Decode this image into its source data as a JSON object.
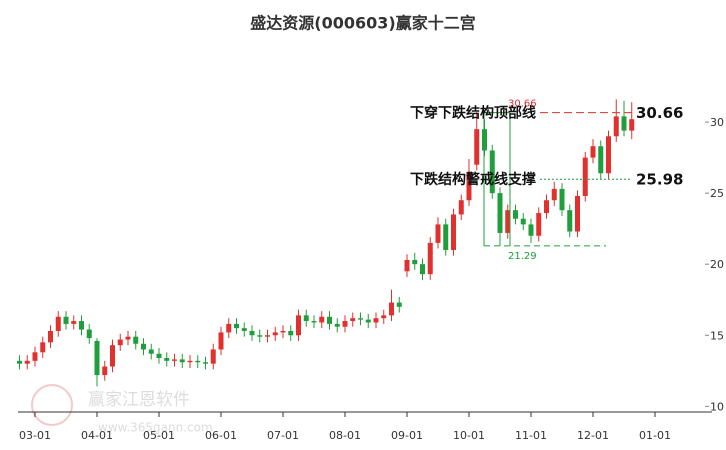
{
  "chart_data": {
    "type": "candlestick",
    "title": "盛达资源(000603)赢家十二宫",
    "categories": [
      null,
      null,
      "03-01",
      null,
      null,
      null,
      null,
      null,
      null,
      null,
      "04-01",
      null,
      null,
      null,
      null,
      null,
      null,
      null,
      "05-01",
      null,
      null,
      null,
      null,
      null,
      null,
      null,
      "06-01",
      null,
      null,
      null,
      null,
      null,
      null,
      null,
      "07-01",
      null,
      null,
      null,
      null,
      null,
      null,
      null,
      "08-01",
      null,
      null,
      null,
      null,
      null,
      null,
      null,
      "09-01",
      null,
      null,
      null,
      null,
      null,
      null,
      null,
      "10-01",
      null,
      null,
      null,
      null,
      null,
      null,
      null,
      "11-01",
      null,
      null,
      null,
      null,
      null,
      null,
      null,
      "12-01",
      null,
      null,
      null,
      null,
      null,
      null,
      null,
      "01-01",
      null,
      null,
      null,
      null,
      null,
      null,
      null
    ],
    "open": [
      13.2,
      13.0,
      13.2,
      13.8,
      14.5,
      15.3,
      16.3,
      15.8,
      16.0,
      15.4,
      14.6,
      12.2,
      12.8,
      14.3,
      14.7,
      14.9,
      14.4,
      14.0,
      13.7,
      13.4,
      13.2,
      13.3,
      13.1,
      13.2,
      13.1,
      13.0,
      14.0,
      15.2,
      15.8,
      15.5,
      15.3,
      15.0,
      14.9,
      15.0,
      15.2,
      15.3,
      15.0,
      16.4,
      16.0,
      15.9,
      16.3,
      15.8,
      15.6,
      16.0,
      16.2,
      16.1,
      15.9,
      16.2,
      16.4,
      17.3,
      19.5,
      20.3,
      20.0,
      19.3,
      21.5,
      22.8,
      21.0,
      23.5,
      24.5,
      27.0,
      29.5,
      28.0,
      25.0,
      22.2,
      23.8,
      23.2,
      22.8,
      22.0,
      23.6,
      24.5,
      25.3,
      23.8,
      22.3,
      24.8,
      27.5,
      28.3,
      26.4,
      29.0,
      30.4,
      29.4,
      null,
      null,
      null,
      null,
      null,
      null,
      null,
      null,
      null,
      null
    ],
    "high": [
      13.6,
      13.6,
      14.2,
      14.9,
      15.7,
      16.7,
      16.7,
      16.4,
      16.4,
      15.8,
      14.8,
      13.2,
      14.7,
      15.1,
      15.3,
      15.3,
      14.8,
      14.4,
      14.1,
      13.8,
      13.7,
      13.7,
      13.6,
      13.6,
      13.5,
      14.4,
      15.6,
      16.2,
      16.2,
      15.9,
      15.7,
      15.4,
      15.4,
      15.6,
      15.7,
      15.7,
      16.8,
      16.8,
      16.4,
      16.7,
      16.7,
      16.2,
      16.4,
      16.6,
      16.6,
      16.5,
      16.6,
      16.8,
      18.2,
      17.7,
      20.7,
      20.8,
      20.4,
      21.9,
      23.3,
      23.2,
      23.9,
      24.9,
      27.4,
      30.7,
      30.2,
      28.4,
      25.4,
      24.2,
      24.2,
      23.6,
      23.2,
      24.0,
      24.9,
      25.8,
      25.7,
      24.2,
      25.2,
      27.9,
      28.8,
      28.7,
      29.4,
      31.6,
      31.5,
      31.4,
      null,
      null,
      null,
      null,
      null,
      null,
      null,
      null,
      null,
      null
    ],
    "low": [
      12.6,
      12.6,
      12.8,
      13.4,
      14.1,
      14.9,
      15.4,
      15.4,
      15.0,
      14.4,
      11.4,
      11.8,
      12.4,
      13.9,
      14.3,
      14.0,
      13.6,
      13.3,
      13.0,
      12.8,
      12.8,
      12.7,
      12.7,
      12.7,
      12.6,
      12.6,
      13.6,
      14.8,
      15.1,
      14.9,
      14.6,
      14.5,
      14.5,
      14.6,
      14.8,
      14.6,
      14.6,
      15.6,
      15.5,
      15.5,
      15.4,
      15.2,
      15.2,
      15.6,
      15.7,
      15.5,
      15.5,
      15.8,
      16.0,
      16.6,
      19.1,
      19.6,
      18.9,
      18.9,
      21.1,
      20.6,
      20.6,
      23.1,
      24.1,
      26.6,
      27.6,
      24.6,
      21.3,
      21.8,
      22.8,
      22.4,
      21.5,
      21.6,
      23.2,
      24.1,
      23.4,
      21.9,
      21.9,
      24.4,
      27.1,
      26.0,
      26.0,
      28.6,
      29.0,
      28.8,
      null,
      null,
      null,
      null,
      null,
      null,
      null,
      null,
      null,
      null
    ],
    "close": [
      13.0,
      13.2,
      13.8,
      14.5,
      15.3,
      16.3,
      15.8,
      16.0,
      15.4,
      14.8,
      12.2,
      12.8,
      14.3,
      14.7,
      14.9,
      14.4,
      14.0,
      13.7,
      13.4,
      13.2,
      13.3,
      13.1,
      13.2,
      13.1,
      13.0,
      14.0,
      15.2,
      15.8,
      15.5,
      15.3,
      15.0,
      14.9,
      15.0,
      15.2,
      15.3,
      15.0,
      16.4,
      16.0,
      15.9,
      16.3,
      15.8,
      15.6,
      16.0,
      16.2,
      16.1,
      15.9,
      16.2,
      16.4,
      17.3,
      17.0,
      20.3,
      20.0,
      19.3,
      21.5,
      22.8,
      21.0,
      23.5,
      24.5,
      26.5,
      29.5,
      28.0,
      25.0,
      22.2,
      23.8,
      23.2,
      22.8,
      22.0,
      23.6,
      24.5,
      25.3,
      23.8,
      22.3,
      24.8,
      27.5,
      28.3,
      26.4,
      29.0,
      30.4,
      29.4,
      30.2,
      null,
      null,
      null,
      null,
      null,
      null,
      null,
      null,
      null,
      null
    ],
    "up_color": "#e0312f",
    "down_color": "#1f9e3c",
    "ylim": [
      9.6,
      35
    ],
    "yticks": [
      10,
      15,
      20,
      25,
      30
    ],
    "grid": false,
    "top_line": {
      "text": "下穿下跌结构顶部线",
      "value": 30.66,
      "color": "#e0312f"
    },
    "support_line": {
      "text": "下跌结构警戒线支撑",
      "value": 25.98,
      "color": "#1f9e3c"
    },
    "structure_low": 21.29,
    "watermark": {
      "name": "赢家江恩软件",
      "url": "www.365gann.com"
    }
  }
}
